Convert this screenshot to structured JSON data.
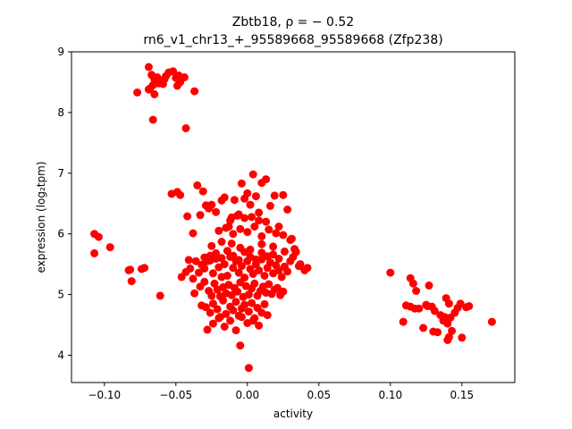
{
  "chart_data": {
    "type": "scatter",
    "title_line1": "Zbtb18, ρ = − 0.52",
    "title_line2": "rn6_v1_chr13_+_95589668_95589668 (Zfp238)",
    "xlabel": "activity",
    "ylabel": "expression (log₂tpm)",
    "xlim": [
      -0.123,
      0.187
    ],
    "ylim": [
      3.55,
      9.0
    ],
    "xticks": [
      -0.1,
      -0.05,
      0.0,
      0.05,
      0.1,
      0.15
    ],
    "xtick_labels": [
      "−0.10",
      "−0.05",
      "0.00",
      "0.05",
      "0.10",
      "0.15"
    ],
    "yticks": [
      4,
      5,
      6,
      7,
      8,
      9
    ],
    "ytick_labels": [
      "4",
      "5",
      "6",
      "7",
      "8",
      "9"
    ],
    "grid": false,
    "marker_color": "#ff0000",
    "x": [
      -0.107,
      -0.104,
      -0.107,
      -0.096,
      -0.083,
      -0.081,
      -0.082,
      -0.074,
      -0.072,
      -0.061,
      -0.069,
      -0.067,
      -0.065,
      -0.063,
      -0.061,
      -0.059,
      -0.057,
      -0.055,
      -0.052,
      -0.05,
      -0.048,
      -0.046,
      -0.044,
      -0.068,
      -0.066,
      -0.064,
      -0.062,
      -0.058,
      -0.049,
      -0.047,
      -0.077,
      -0.069,
      -0.065,
      -0.037,
      -0.066,
      -0.043,
      -0.053,
      -0.049,
      -0.047,
      -0.042,
      -0.041,
      -0.038,
      -0.035,
      -0.033,
      -0.031,
      -0.029,
      -0.027,
      -0.025,
      -0.022,
      -0.018,
      -0.016,
      -0.013,
      -0.011,
      -0.009,
      -0.006,
      -0.004,
      -0.002,
      0.0,
      0.002,
      0.004,
      0.006,
      0.008,
      0.01,
      0.013,
      0.016,
      0.019,
      0.022,
      0.025,
      0.028,
      0.031,
      0.034,
      0.037,
      0.04,
      0.042,
      -0.046,
      -0.043,
      -0.04,
      -0.038,
      -0.036,
      -0.034,
      -0.032,
      -0.03,
      -0.028,
      -0.026,
      -0.024,
      -0.022,
      -0.02,
      -0.018,
      -0.016,
      -0.014,
      -0.012,
      -0.01,
      -0.008,
      -0.006,
      -0.004,
      -0.002,
      0.0,
      0.002,
      0.004,
      0.006,
      0.008,
      0.01,
      0.012,
      0.014,
      0.016,
      0.018,
      0.02,
      0.022,
      0.024,
      0.026,
      0.028,
      -0.037,
      -0.033,
      -0.03,
      -0.027,
      -0.025,
      -0.023,
      -0.021,
      -0.019,
      -0.017,
      -0.015,
      -0.013,
      -0.011,
      -0.009,
      -0.007,
      -0.005,
      -0.003,
      -0.001,
      0.001,
      0.003,
      0.005,
      0.007,
      0.009,
      0.011,
      0.013,
      0.015,
      0.017,
      0.019,
      0.021,
      0.023,
      0.025,
      -0.032,
      -0.029,
      -0.026,
      -0.024,
      -0.021,
      -0.019,
      -0.017,
      -0.015,
      -0.012,
      -0.01,
      -0.008,
      -0.006,
      -0.004,
      -0.002,
      0.001,
      0.003,
      0.005,
      0.007,
      0.01,
      0.012,
      0.014,
      -0.028,
      -0.024,
      -0.02,
      -0.016,
      -0.012,
      -0.008,
      -0.004,
      0.0,
      0.004,
      0.008,
      -0.025,
      -0.018,
      -0.011,
      -0.005,
      0.002,
      0.01,
      0.018,
      0.03,
      0.033,
      -0.005,
      0.001,
      -0.03,
      -0.026,
      -0.022,
      -0.018,
      -0.014,
      -0.01,
      -0.006,
      -0.002,
      0.002,
      0.006,
      0.01,
      0.014,
      0.018,
      0.022,
      0.026,
      0.03,
      0.032,
      0.036,
      -0.02,
      -0.015,
      -0.01,
      -0.005,
      0.0,
      0.005,
      0.01,
      0.015,
      0.02,
      0.025,
      -0.012,
      -0.007,
      -0.002,
      0.003,
      0.008,
      0.013,
      0.1,
      0.109,
      0.111,
      0.114,
      0.116,
      0.117,
      0.118,
      0.12,
      0.123,
      0.125,
      0.127,
      0.129,
      0.131,
      0.133,
      0.135,
      0.137,
      0.138,
      0.139,
      0.14,
      0.141,
      0.142,
      0.143,
      0.145,
      0.147,
      0.149,
      0.15,
      0.153,
      0.155,
      0.171,
      0.141,
      0.14,
      0.13,
      0.126,
      0.114
    ],
    "y": [
      6.0,
      5.95,
      5.68,
      5.78,
      5.4,
      5.22,
      5.41,
      5.42,
      5.44,
      4.98,
      8.75,
      8.62,
      8.55,
      8.58,
      8.5,
      8.47,
      8.6,
      8.66,
      8.68,
      8.57,
      8.61,
      8.56,
      8.58,
      8.4,
      8.45,
      8.52,
      8.48,
      8.55,
      8.44,
      8.5,
      8.33,
      8.38,
      8.3,
      8.35,
      7.88,
      7.74,
      6.66,
      6.69,
      6.64,
      6.29,
      5.57,
      6.01,
      6.8,
      6.31,
      6.7,
      6.47,
      6.42,
      6.48,
      6.36,
      6.55,
      6.6,
      6.12,
      6.27,
      6.56,
      6.32,
      6.83,
      6.58,
      6.67,
      6.48,
      6.98,
      6.62,
      6.22,
      6.84,
      6.9,
      6.46,
      6.63,
      6.12,
      6.64,
      6.4,
      5.92,
      5.7,
      5.5,
      5.4,
      5.44,
      5.29,
      5.37,
      5.43,
      5.26,
      5.55,
      5.36,
      5.49,
      5.43,
      5.55,
      5.64,
      5.35,
      5.59,
      5.45,
      5.29,
      5.5,
      5.31,
      5.62,
      5.44,
      5.55,
      5.36,
      5.47,
      5.28,
      5.55,
      5.42,
      5.34,
      5.5,
      5.4,
      5.58,
      5.31,
      5.44,
      5.53,
      5.35,
      5.48,
      5.4,
      5.29,
      5.46,
      5.38,
      5.02,
      5.13,
      5.21,
      5.06,
      4.98,
      5.18,
      5.08,
      4.97,
      5.12,
      5.02,
      5.16,
      4.99,
      5.11,
      5.05,
      5.2,
      4.96,
      5.14,
      5.0,
      5.1,
      5.18,
      4.98,
      5.06,
      5.13,
      5.03,
      5.17,
      5.01,
      5.08,
      5.11,
      4.99,
      5.05,
      4.82,
      4.79,
      4.7,
      4.85,
      4.76,
      4.63,
      4.9,
      4.68,
      4.8,
      4.74,
      4.88,
      4.65,
      4.77,
      4.83,
      4.72,
      4.86,
      4.61,
      4.78,
      4.7,
      4.84,
      4.66,
      4.42,
      4.52,
      4.61,
      4.47,
      4.57,
      4.41,
      4.63,
      4.53,
      4.57,
      4.49,
      5.8,
      5.87,
      5.84,
      5.77,
      5.74,
      5.83,
      5.79,
      5.9,
      5.75,
      4.16,
      3.79,
      5.61,
      5.56,
      5.68,
      5.6,
      5.72,
      5.64,
      5.57,
      5.7,
      5.62,
      5.58,
      5.69,
      5.63,
      5.66,
      5.59,
      5.71,
      5.55,
      5.62,
      5.47,
      6.05,
      6.1,
      6.0,
      6.08,
      6.03,
      6.12,
      5.96,
      6.07,
      6.01,
      5.98,
      6.22,
      6.3,
      6.26,
      6.28,
      6.35,
      6.2,
      5.36,
      4.55,
      4.82,
      4.8,
      5.18,
      4.77,
      5.06,
      4.77,
      4.45,
      4.83,
      5.15,
      4.8,
      4.73,
      4.38,
      4.66,
      4.57,
      4.63,
      4.94,
      4.52,
      4.85,
      4.62,
      4.4,
      4.7,
      4.78,
      4.85,
      4.29,
      4.79,
      4.81,
      4.55,
      4.3,
      4.25,
      4.39,
      4.81,
      5.27
    ]
  }
}
